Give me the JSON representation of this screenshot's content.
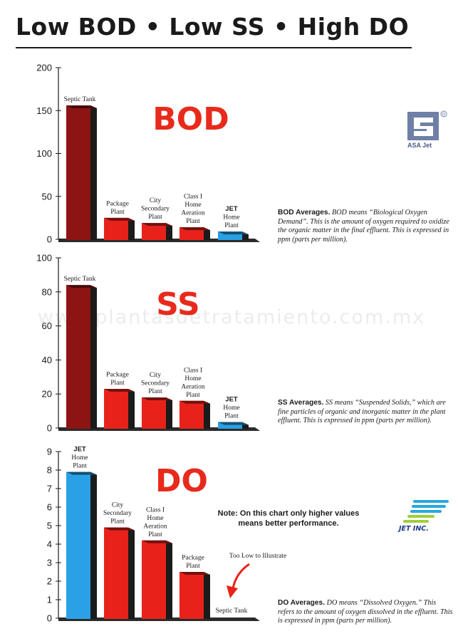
{
  "page": {
    "title": "Low BOD • Low SS • High DO",
    "watermark": "www.plantasdetratamiento.com.mx"
  },
  "logos": {
    "asa_text": "ASA Jet",
    "jet_text": "JET INC."
  },
  "colors": {
    "red_bar": "#e8221a",
    "dark_red_bar": "#8e1414",
    "blue_bar": "#2aa0e6",
    "heading_red": "#e82a1c",
    "asa_blue": "#6f7fa6"
  },
  "descriptions": {
    "bod": {
      "lead": "BOD Averages.",
      "text": " BOD means “Biological Oxygen Demand”. This is the amount of oxygen required to oxidize the organic matter in the final effluent. This is expressed in ppm (parts per million)."
    },
    "ss": {
      "lead": "SS Averages.",
      "text": " SS means “Suspended Solids,” which are fine particles of organic and inorganic matter in the plant effluent. This is expressed in ppm (parts per million)."
    },
    "do": {
      "lead": "DO Averages.",
      "text": " DO means “Dissolved Oxygen.” This refers to the amount of oxygen dissolved in the effluent. This is expressed in ppm (parts per million)."
    }
  },
  "do_note": "Note: On this chart only higher values means better performance.",
  "chart_data": [
    {
      "type": "bar",
      "title": "BOD",
      "categories": [
        "Septic Tank",
        "Package Plant",
        "City Secondary Plant",
        "Class I Home Aeration Plant",
        "JET Home Plant"
      ],
      "values": [
        156,
        25,
        19,
        14,
        9
      ],
      "ylim": [
        0,
        200
      ],
      "yticks": [
        0,
        50,
        100,
        150,
        200
      ],
      "xlabel": "",
      "ylabel": "",
      "grid": false
    },
    {
      "type": "bar",
      "title": "SS",
      "categories": [
        "Septic Tank",
        "Package Plant",
        "City Secondary Plant",
        "Class I Home Aeration Plant",
        "JET Home Plant"
      ],
      "values": [
        84,
        23,
        18,
        16,
        3.5
      ],
      "ylim": [
        0,
        100
      ],
      "yticks": [
        0,
        20,
        40,
        60,
        80,
        100
      ],
      "xlabel": "",
      "ylabel": "",
      "grid": false
    },
    {
      "type": "bar",
      "title": "DO",
      "categories": [
        "JET Home Plant",
        "City Secondary Plant",
        "Class I Home Aeration Plant",
        "Package Plant",
        "Septic Tank"
      ],
      "values": [
        7.9,
        4.9,
        4.2,
        2.5,
        0
      ],
      "ylim": [
        0,
        9
      ],
      "yticks": [
        0,
        1,
        2,
        3,
        4,
        5,
        6,
        7,
        8,
        9
      ],
      "annotation": "Too Low to Illustrate",
      "xlabel": "",
      "ylabel": "",
      "grid": false
    }
  ]
}
